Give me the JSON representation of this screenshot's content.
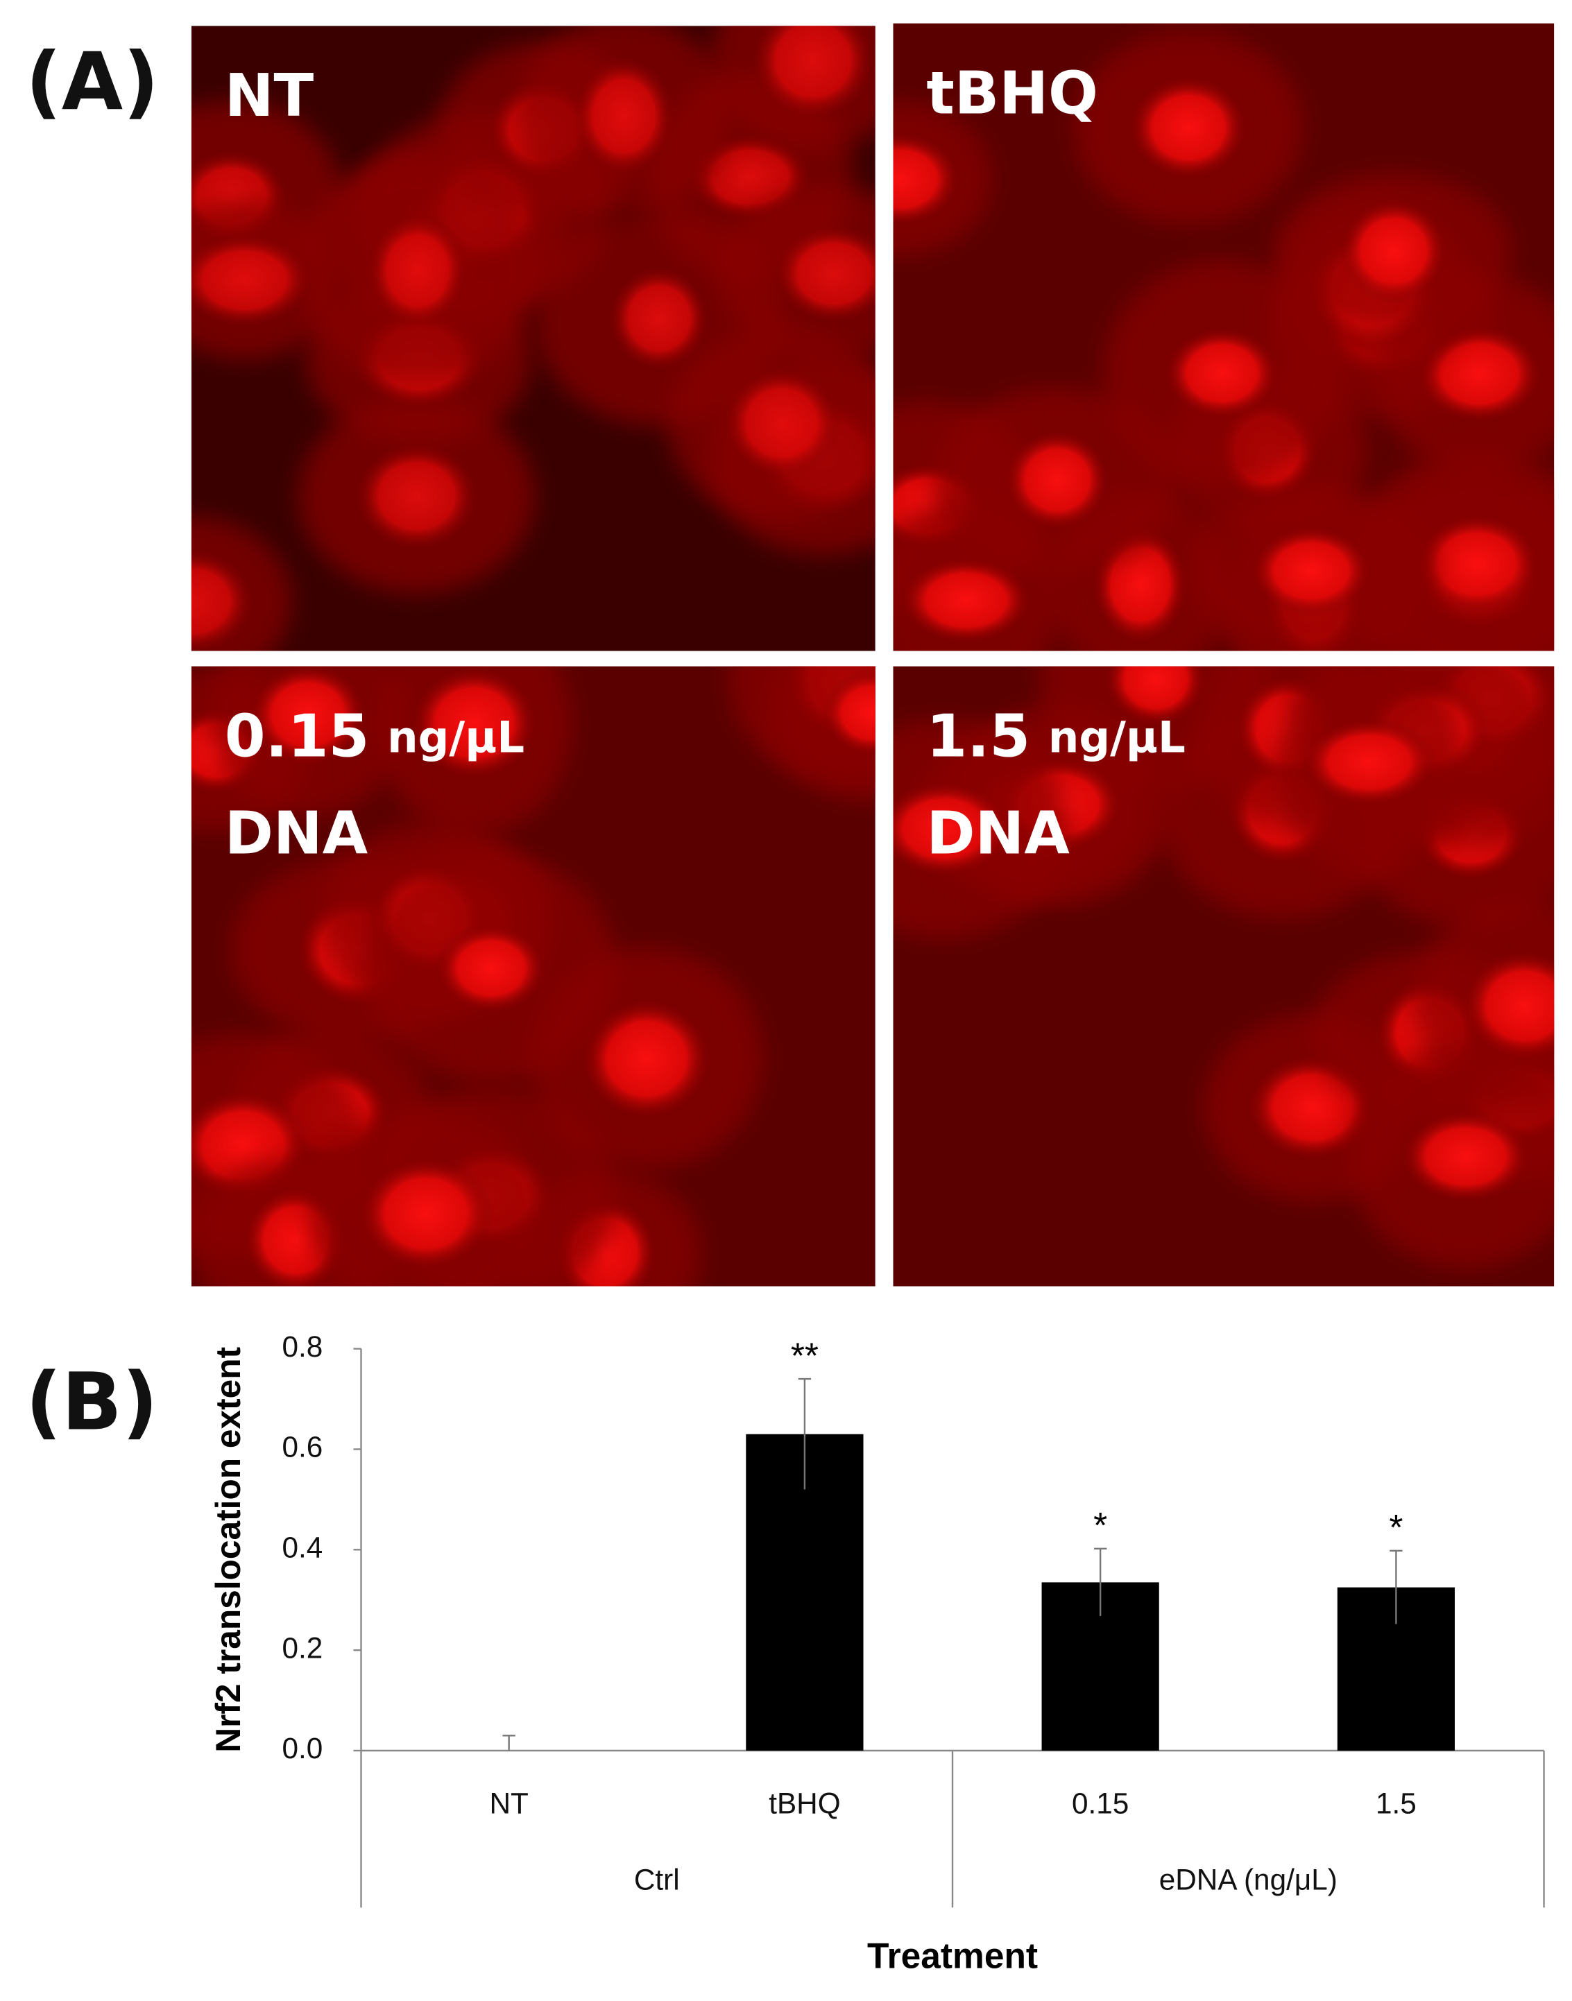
{
  "figure_labels": [
    "(A)",
    "(B)"
  ],
  "panels": [
    {
      "title": "NT"
    },
    {
      "title": "tBHQ"
    },
    {
      "title": "0.15",
      "unit": "ng/μL",
      "line2": "DNA"
    },
    {
      "title": "1.5",
      "unit": "ng/μL",
      "line2": "DNA"
    }
  ],
  "chart_data": {
    "type": "bar",
    "categories": [
      "NT",
      "tBHQ",
      "0.15",
      "1.5"
    ],
    "groups": [
      {
        "name": "Ctrl",
        "span": 2
      },
      {
        "name": "eDNA (ng/μL)",
        "span": 2
      }
    ],
    "values": [
      0.0,
      0.63,
      0.335,
      0.325
    ],
    "errors": [
      0.03,
      0.11,
      0.067,
      0.073
    ],
    "significance": [
      null,
      "**",
      "*",
      "*"
    ],
    "color": "#000000",
    "xlabel": "Treatment",
    "ylabel": "Nrf2 translocation extent",
    "ylim": [
      0,
      0.8
    ],
    "yticks": [
      {
        "value": 0,
        "label": "0.0"
      },
      0.2,
      0.4,
      0.6,
      0.8
    ],
    "grid": false
  }
}
